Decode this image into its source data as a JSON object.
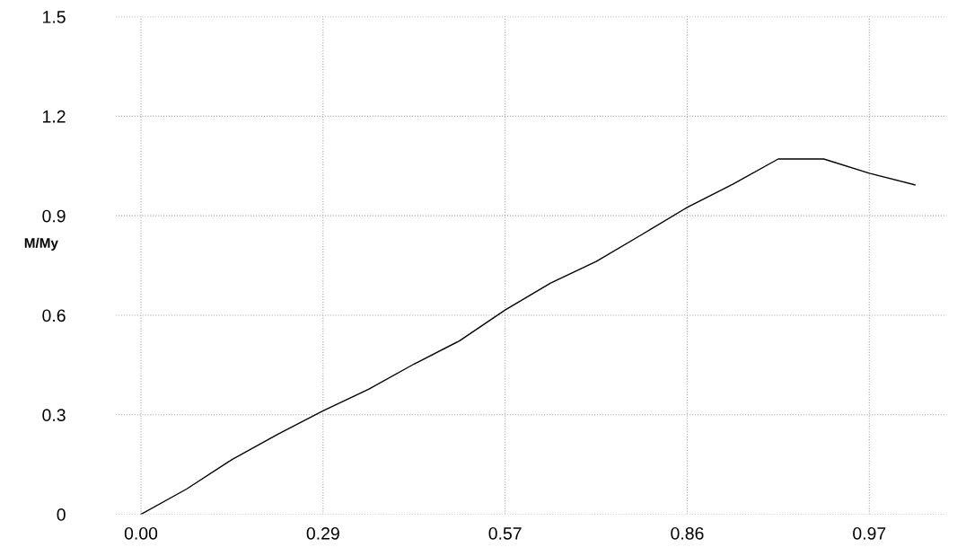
{
  "chart_data": {
    "type": "line",
    "ylabel": "M/My",
    "categories": [
      "0.00",
      null,
      null,
      null,
      "0.29",
      null,
      null,
      null,
      "0.57",
      null,
      null,
      null,
      "0.86",
      null,
      null,
      null,
      "0.97",
      null
    ],
    "series": [
      {
        "color": "#000000",
        "values": [
          0,
          0.076,
          0.165,
          0.241,
          0.312,
          0.377,
          0.453,
          0.523,
          0.616,
          0.697,
          0.762,
          0.843,
          0.925,
          0.995,
          1.071,
          1.071,
          1.028,
          0.993
        ]
      }
    ],
    "ylim": [
      0,
      1.5
    ],
    "yticks": [
      0,
      0.3,
      0.6,
      0.9,
      1.2,
      1.5
    ],
    "grid": true,
    "marker": "none",
    "line_style": "solid"
  }
}
